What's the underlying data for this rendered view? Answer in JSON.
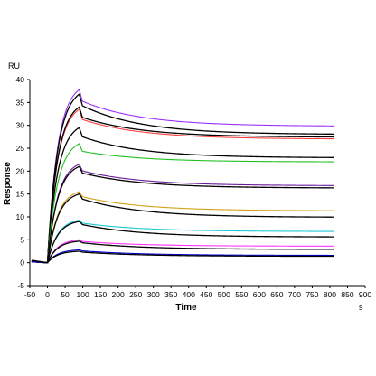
{
  "chart_data": {
    "type": "line",
    "ylabel": "Response",
    "xlabel": "Time",
    "y_unit": "RU",
    "x_unit": "s",
    "xlim": [
      -50,
      900
    ],
    "ylim": [
      -5,
      40
    ],
    "xticks": [
      -50,
      0,
      50,
      100,
      150,
      200,
      250,
      300,
      350,
      400,
      450,
      500,
      550,
      600,
      650,
      700,
      750,
      800,
      850,
      900
    ],
    "yticks": [
      -5,
      0,
      5,
      10,
      15,
      20,
      25,
      30,
      35,
      40
    ],
    "grid": false,
    "injection_start": 0,
    "injection_end": 90,
    "series": [
      {
        "color": "#9b30ff",
        "peak": 37.8,
        "end": 29.8
      },
      {
        "color": "#000000",
        "peak": 36.8,
        "end": 28.0
      },
      {
        "color": "#ff4040",
        "peak": 33.5,
        "end": 27.0
      },
      {
        "color": "#000000",
        "peak": 34.0,
        "end": 27.4
      },
      {
        "color": "#000000",
        "peak": 29.5,
        "end": 22.9
      },
      {
        "color": "#22c022",
        "peak": 26.0,
        "end": 22.0
      },
      {
        "color": "#6a1b9a",
        "peak": 21.5,
        "end": 16.8
      },
      {
        "color": "#000000",
        "peak": 21.0,
        "end": 16.3
      },
      {
        "color": "#d4a017",
        "peak": 15.5,
        "end": 11.3
      },
      {
        "color": "#000000",
        "peak": 15.0,
        "end": 9.9
      },
      {
        "color": "#1ec8d6",
        "peak": 9.3,
        "end": 6.8
      },
      {
        "color": "#000000",
        "peak": 9.0,
        "end": 5.6
      },
      {
        "color": "#ff33ff",
        "peak": 5.0,
        "end": 3.6
      },
      {
        "color": "#000000",
        "peak": 4.7,
        "end": 2.9
      },
      {
        "color": "#0000cc",
        "peak": 2.8,
        "end": 1.6
      },
      {
        "color": "#000000",
        "peak": 2.5,
        "end": 1.4
      }
    ]
  }
}
